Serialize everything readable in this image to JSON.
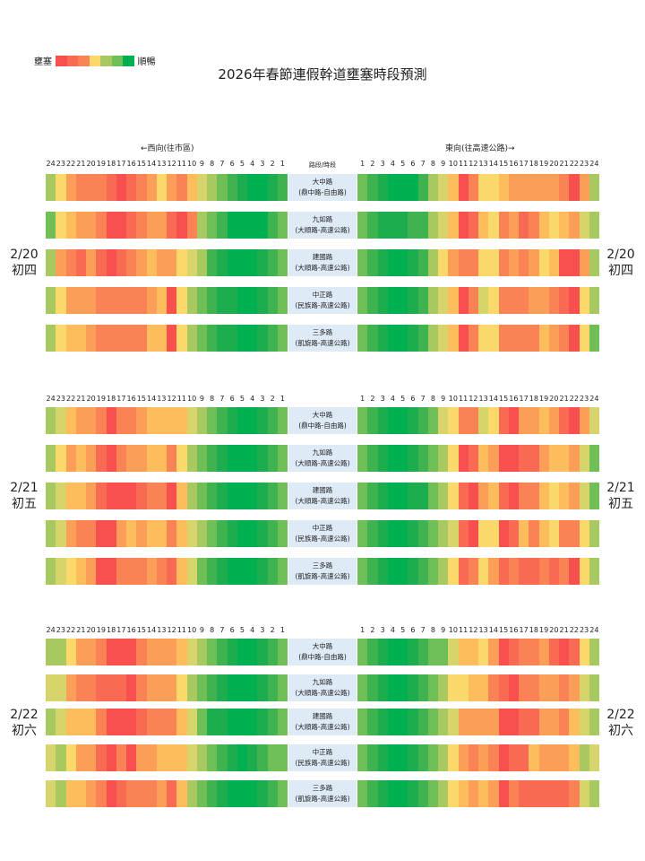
{
  "title": "2026年春節連假幹道壅塞時段預測",
  "legend": {
    "left_label": "壅塞",
    "right_label": "順暢",
    "colors": [
      "#f8504f",
      "#f96a53",
      "#fa8355",
      "#fbd86a",
      "#a7c95f",
      "#6fbf56",
      "#00b050"
    ]
  },
  "palette": {
    "1": "#f8504f",
    "2": "#f96a53",
    "3": "#fa8355",
    "4": "#fb9e58",
    "5": "#fdbd5c",
    "6": "#fbd86a",
    "7": "#d6d46a",
    "8": "#a7c95f",
    "9": "#6fbf56",
    "10": "#3fb350",
    "11": "#1dad4e",
    "12": "#00b050"
  },
  "west_label": "←西向(往市區)",
  "east_label": "東向(往高速公路)→",
  "mid_header": "路段/時段",
  "west_hours": [
    "24",
    "23",
    "22",
    "21",
    "20",
    "19",
    "18",
    "17",
    "16",
    "15",
    "14",
    "13",
    "12",
    "11",
    "10",
    "9",
    "8",
    "7",
    "6",
    "5",
    "4",
    "3",
    "2",
    "1"
  ],
  "east_hours": [
    "1",
    "2",
    "3",
    "4",
    "5",
    "6",
    "7",
    "8",
    "9",
    "10",
    "11",
    "12",
    "13",
    "14",
    "15",
    "16",
    "17",
    "18",
    "19",
    "20",
    "21",
    "22",
    "23",
    "24"
  ],
  "chart_data": {
    "type": "heatmap",
    "title": "2026年春節連假幹道壅塞時段預測",
    "scale": "1=壅塞(red) ... 12=順暢(green)",
    "days": [
      {
        "date": "2/20",
        "lunar": "初四",
        "roads": [
          {
            "name": "大中路",
            "segment": "(鼎中路-自由路)",
            "west": [
              8,
              6,
              4,
              3,
              3,
              3,
              2,
              1,
              2,
              3,
              4,
              6,
              4,
              3,
              5,
              7,
              8,
              9,
              10,
              11,
              12,
              12,
              11,
              10
            ],
            "east": [
              9,
              10,
              11,
              12,
              12,
              12,
              10,
              8,
              7,
              5,
              1,
              3,
              6,
              6,
              5,
              4,
              4,
              4,
              4,
              4,
              3,
              1,
              4,
              8
            ]
          },
          {
            "name": "九如路",
            "segment": "(大順路-高速公路)",
            "west": [
              9,
              6,
              5,
              4,
              4,
              3,
              1,
              1,
              2,
              3,
              4,
              4,
              2,
              1,
              3,
              8,
              9,
              10,
              12,
              12,
              12,
              12,
              10,
              9
            ],
            "east": [
              9,
              10,
              11,
              11,
              11,
              10,
              10,
              8,
              7,
              5,
              1,
              2,
              5,
              6,
              3,
              4,
              2,
              3,
              5,
              6,
              5,
              4,
              7,
              8
            ]
          },
          {
            "name": "建國路",
            "segment": "(大順路-高速公路)",
            "west": [
              8,
              4,
              3,
              2,
              4,
              2,
              1,
              2,
              3,
              4,
              5,
              4,
              4,
              6,
              7,
              8,
              10,
              11,
              12,
              12,
              12,
              11,
              10,
              9
            ],
            "east": [
              9,
              10,
              11,
              12,
              12,
              11,
              10,
              8,
              6,
              4,
              3,
              3,
              6,
              6,
              3,
              4,
              3,
              4,
              6,
              5,
              1,
              1,
              4,
              8
            ]
          },
          {
            "name": "中正路",
            "segment": "(民族路-高速公路)",
            "west": [
              8,
              6,
              4,
              4,
              4,
              3,
              3,
              3,
              3,
              3,
              4,
              5,
              1,
              6,
              8,
              9,
              10,
              11,
              11,
              12,
              12,
              11,
              10,
              9
            ],
            "east": [
              9,
              10,
              11,
              12,
              12,
              11,
              10,
              8,
              7,
              5,
              1,
              3,
              7,
              6,
              3,
              3,
              3,
              4,
              4,
              3,
              2,
              1,
              6,
              8
            ]
          },
          {
            "name": "三多路",
            "segment": "(凱旋路-高速公路)",
            "west": [
              8,
              6,
              5,
              5,
              4,
              3,
              3,
              3,
              3,
              3,
              5,
              5,
              1,
              6,
              8,
              9,
              10,
              11,
              11,
              12,
              12,
              11,
              10,
              9
            ],
            "east": [
              9,
              10,
              11,
              12,
              12,
              11,
              10,
              8,
              7,
              5,
              1,
              3,
              6,
              6,
              3,
              3,
              3,
              3,
              5,
              4,
              3,
              1,
              6,
              9
            ]
          }
        ]
      },
      {
        "date": "2/21",
        "lunar": "初五",
        "roads": [
          {
            "name": "大中路",
            "segment": "(鼎中路-自由路)",
            "west": [
              8,
              7,
              5,
              4,
              4,
              3,
              1,
              3,
              3,
              4,
              5,
              5,
              5,
              5,
              7,
              8,
              9,
              10,
              11,
              12,
              12,
              11,
              10,
              9
            ],
            "east": [
              9,
              10,
              11,
              12,
              12,
              11,
              10,
              9,
              7,
              6,
              3,
              3,
              7,
              6,
              2,
              1,
              4,
              4,
              5,
              4,
              2,
              1,
              4,
              7
            ]
          },
          {
            "name": "九如路",
            "segment": "(大順路-高速公路)",
            "west": [
              8,
              6,
              4,
              5,
              4,
              2,
              1,
              3,
              4,
              4,
              5,
              5,
              3,
              6,
              8,
              9,
              10,
              11,
              12,
              12,
              12,
              11,
              10,
              9
            ],
            "east": [
              9,
              10,
              11,
              12,
              12,
              11,
              10,
              9,
              8,
              6,
              1,
              2,
              5,
              4,
              1,
              1,
              2,
              2,
              4,
              5,
              5,
              4,
              7,
              9
            ]
          },
          {
            "name": "建國路",
            "segment": "(大順路-高速公路)",
            "west": [
              8,
              7,
              5,
              5,
              4,
              2,
              1,
              1,
              1,
              2,
              3,
              3,
              1,
              5,
              8,
              9,
              10,
              11,
              12,
              12,
              12,
              11,
              10,
              9
            ],
            "east": [
              9,
              10,
              11,
              12,
              12,
              11,
              11,
              9,
              8,
              6,
              2,
              1,
              4,
              5,
              2,
              1,
              3,
              3,
              5,
              6,
              5,
              4,
              7,
              9
            ]
          },
          {
            "name": "中正路",
            "segment": "(民族路-高速公路)",
            "west": [
              8,
              7,
              4,
              3,
              3,
              1,
              1,
              4,
              5,
              4,
              5,
              5,
              3,
              5,
              7,
              8,
              9,
              10,
              11,
              12,
              12,
              11,
              10,
              9
            ],
            "east": [
              9,
              10,
              11,
              12,
              12,
              11,
              10,
              9,
              8,
              7,
              2,
              1,
              6,
              6,
              1,
              2,
              5,
              3,
              5,
              6,
              3,
              3,
              6,
              8
            ]
          },
          {
            "name": "三多路",
            "segment": "(凱旋路-高速公路)",
            "west": [
              8,
              7,
              6,
              5,
              4,
              1,
              1,
              3,
              3,
              3,
              4,
              3,
              2,
              5,
              7,
              9,
              10,
              11,
              12,
              12,
              12,
              11,
              10,
              9
            ],
            "east": [
              9,
              10,
              11,
              12,
              12,
              11,
              10,
              9,
              8,
              6,
              2,
              3,
              6,
              4,
              2,
              3,
              2,
              2,
              3,
              2,
              3,
              1,
              6,
              8
            ]
          }
        ]
      },
      {
        "date": "2/22",
        "lunar": "初六",
        "roads": [
          {
            "name": "大中路",
            "segment": "(鼎中路-自由路)",
            "west": [
              8,
              8,
              6,
              4,
              4,
              3,
              1,
              1,
              1,
              3,
              4,
              4,
              4,
              5,
              7,
              8,
              9,
              10,
              11,
              12,
              12,
              11,
              10,
              9
            ],
            "east": [
              9,
              10,
              11,
              12,
              12,
              11,
              10,
              9,
              9,
              7,
              5,
              5,
              6,
              4,
              1,
              2,
              3,
              3,
              4,
              2,
              1,
              2,
              6,
              8
            ]
          },
          {
            "name": "九如路",
            "segment": "(大順路-高速公路)",
            "west": [
              7,
              7,
              4,
              3,
              3,
              2,
              2,
              2,
              1,
              3,
              4,
              4,
              4,
              6,
              8,
              9,
              10,
              11,
              12,
              12,
              12,
              11,
              10,
              9
            ],
            "east": [
              9,
              10,
              11,
              12,
              12,
              11,
              10,
              9,
              8,
              6,
              6,
              5,
              5,
              3,
              2,
              1,
              3,
              3,
              4,
              4,
              3,
              4,
              7,
              8
            ]
          },
          {
            "name": "建國路",
            "segment": "(大順路-高速公路)",
            "west": [
              8,
              7,
              5,
              5,
              5,
              3,
              1,
              1,
              1,
              2,
              3,
              3,
              3,
              5,
              7,
              9,
              11,
              11,
              12,
              12,
              12,
              11,
              10,
              9
            ],
            "east": [
              9,
              10,
              11,
              12,
              12,
              11,
              10,
              9,
              8,
              7,
              4,
              4,
              4,
              4,
              1,
              1,
              2,
              2,
              4,
              4,
              3,
              5,
              7,
              8
            ]
          },
          {
            "name": "中正路",
            "segment": "(民族路-高速公路)",
            "west": [
              7,
              8,
              6,
              4,
              4,
              2,
              1,
              3,
              1,
              4,
              4,
              5,
              5,
              5,
              7,
              8,
              9,
              10,
              11,
              12,
              11,
              10,
              9,
              9
            ],
            "east": [
              9,
              10,
              11,
              12,
              12,
              11,
              10,
              9,
              8,
              6,
              4,
              3,
              4,
              3,
              1,
              2,
              2,
              5,
              4,
              4,
              4,
              5,
              8,
              7
            ]
          },
          {
            "name": "三多路",
            "segment": "(凱旋路-高速公路)",
            "west": [
              7,
              8,
              5,
              5,
              4,
              3,
              1,
              2,
              3,
              3,
              3,
              4,
              2,
              5,
              8,
              9,
              10,
              11,
              12,
              12,
              12,
              11,
              10,
              9
            ],
            "east": [
              9,
              10,
              11,
              12,
              12,
              11,
              10,
              9,
              8,
              6,
              5,
              4,
              5,
              4,
              1,
              3,
              2,
              2,
              2,
              2,
              2,
              3,
              7,
              8
            ]
          }
        ]
      }
    ]
  }
}
